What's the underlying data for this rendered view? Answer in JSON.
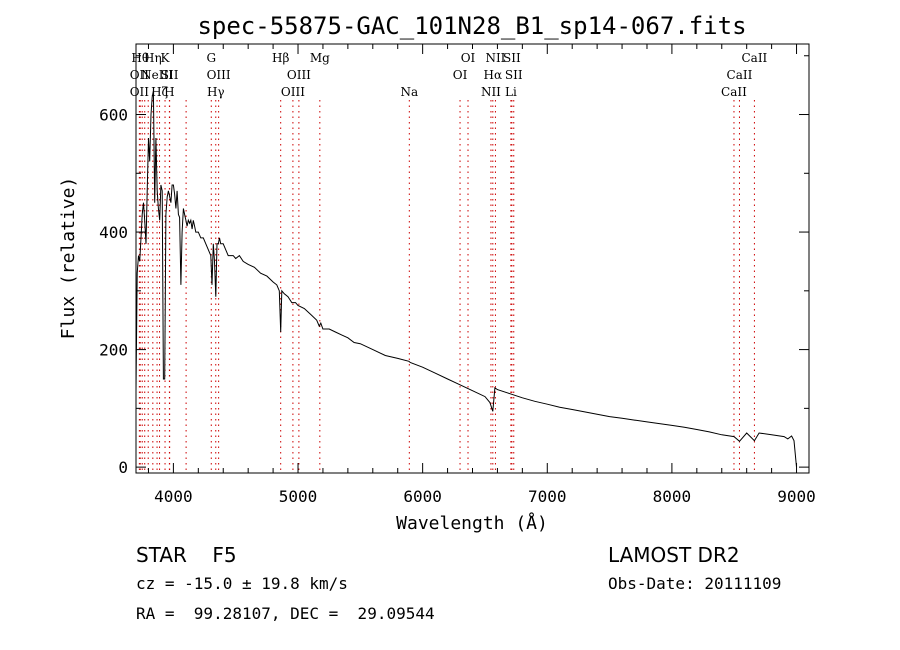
{
  "chart_data": {
    "type": "line",
    "title": "spec-55875-GAC_101N28_B1_sp14-067.fits",
    "xlabel": "Wavelength (Å)",
    "ylabel": "Flux (relative)",
    "xlim": [
      3700,
      9100
    ],
    "ylim": [
      -10,
      720
    ],
    "x_ticks": [
      4000,
      5000,
      6000,
      7000,
      8000,
      9000
    ],
    "y_ticks": [
      0,
      200,
      400,
      600
    ],
    "grid": false,
    "series": [
      {
        "x": [
          3700,
          3710,
          3720,
          3730,
          3740,
          3750,
          3760,
          3770,
          3780,
          3790,
          3800,
          3810,
          3820,
          3830,
          3840,
          3850,
          3860,
          3870,
          3880,
          3890,
          3900,
          3910,
          3920,
          3930,
          3940,
          3950,
          3960,
          3970,
          3980,
          3990,
          4000,
          4010,
          4020,
          4030,
          4040,
          4050,
          4060,
          4070,
          4080,
          4090,
          4100,
          4110,
          4120,
          4130,
          4140,
          4150,
          4160,
          4170,
          4180,
          4190,
          4200,
          4220,
          4240,
          4260,
          4280,
          4300,
          4310,
          4320,
          4330,
          4340,
          4350,
          4360,
          4370,
          4380,
          4400,
          4420,
          4440,
          4460,
          4480,
          4500,
          4530,
          4560,
          4600,
          4650,
          4700,
          4750,
          4800,
          4830,
          4850,
          4861,
          4870,
          4890,
          4920,
          4950,
          4980,
          5000,
          5050,
          5100,
          5150,
          5170,
          5183,
          5200,
          5250,
          5300,
          5350,
          5400,
          5450,
          5500,
          5600,
          5700,
          5800,
          5890,
          5900,
          6000,
          6100,
          6200,
          6300,
          6400,
          6500,
          6540,
          6563,
          6580,
          6600,
          6700,
          6800,
          6900,
          7000,
          7100,
          7200,
          7300,
          7400,
          7500,
          7600,
          7700,
          7800,
          7900,
          8000,
          8100,
          8200,
          8300,
          8400,
          8498,
          8542,
          8600,
          8662,
          8700,
          8800,
          8900,
          8930,
          8960,
          8980,
          9000
        ],
        "y": [
          130,
          330,
          360,
          350,
          390,
          430,
          450,
          420,
          380,
          470,
          560,
          520,
          600,
          630,
          640,
          450,
          560,
          470,
          440,
          420,
          480,
          470,
          150,
          150,
          430,
          460,
          470,
          460,
          450,
          480,
          480,
          465,
          440,
          470,
          430,
          425,
          310,
          400,
          440,
          430,
          420,
          410,
          420,
          415,
          420,
          405,
          420,
          410,
          400,
          400,
          400,
          390,
          390,
          380,
          370,
          360,
          310,
          380,
          350,
          290,
          380,
          380,
          390,
          380,
          380,
          370,
          360,
          360,
          360,
          355,
          360,
          350,
          345,
          340,
          330,
          325,
          315,
          310,
          300,
          230,
          300,
          295,
          290,
          280,
          280,
          275,
          270,
          260,
          250,
          240,
          245,
          235,
          235,
          230,
          225,
          220,
          212,
          210,
          200,
          190,
          185,
          180,
          178,
          170,
          160,
          150,
          140,
          130,
          120,
          110,
          95,
          135,
          132,
          125,
          118,
          112,
          107,
          102,
          98,
          94,
          90,
          86,
          83,
          80,
          77,
          74,
          71,
          68,
          64,
          60,
          55,
          52,
          44,
          58,
          45,
          58,
          55,
          52,
          48,
          53,
          45,
          0
        ],
        "color": "#000000"
      }
    ],
    "line_labels": [
      {
        "wavelength": 3734,
        "tier": 1,
        "label": "Hθ"
      },
      {
        "wavelength": 3727,
        "tier": 2,
        "label": "OII"
      },
      {
        "wavelength": 3727,
        "tier": 3,
        "label": "OII"
      },
      {
        "wavelength": 3835,
        "tier": 1,
        "label": "Hη"
      },
      {
        "wavelength": 3869,
        "tier": 2,
        "label": "NeIII"
      },
      {
        "wavelength": 3889,
        "tier": 3,
        "label": "Hζ"
      },
      {
        "wavelength": 3933,
        "tier": 1,
        "label": "K"
      },
      {
        "wavelength": 3970,
        "tier": 2,
        "label": "SII"
      },
      {
        "wavelength": 3968,
        "tier": 3,
        "label": "H"
      },
      {
        "wavelength": 4304,
        "tier": 1,
        "label": "G"
      },
      {
        "wavelength": 4363,
        "tier": 2,
        "label": "OIII"
      },
      {
        "wavelength": 4340,
        "tier": 3,
        "label": "Hγ"
      },
      {
        "wavelength": 4861,
        "tier": 1,
        "label": "Hβ"
      },
      {
        "wavelength": 5007,
        "tier": 2,
        "label": "OIII"
      },
      {
        "wavelength": 4959,
        "tier": 3,
        "label": "OIII"
      },
      {
        "wavelength": 5175,
        "tier": 1,
        "label": "Mg"
      },
      {
        "wavelength": 5893,
        "tier": 3,
        "label": "Na"
      },
      {
        "wavelength": 6364,
        "tier": 1,
        "label": "OI"
      },
      {
        "wavelength": 6300,
        "tier": 2,
        "label": "OI"
      },
      {
        "wavelength": 6584,
        "tier": 1,
        "label": "NII"
      },
      {
        "wavelength": 6563,
        "tier": 2,
        "label": "Hα"
      },
      {
        "wavelength": 6548,
        "tier": 3,
        "label": "NII"
      },
      {
        "wavelength": 6716,
        "tier": 1,
        "label": "SII"
      },
      {
        "wavelength": 6731,
        "tier": 2,
        "label": "SII"
      },
      {
        "wavelength": 6708,
        "tier": 3,
        "label": "Li"
      },
      {
        "wavelength": 8662,
        "tier": 1,
        "label": "CaII"
      },
      {
        "wavelength": 8542,
        "tier": 2,
        "label": "CaII"
      },
      {
        "wavelength": 8498,
        "tier": 3,
        "label": "CaII"
      }
    ],
    "dotted_lines": [
      3727,
      3734,
      3750,
      3770,
      3798,
      3835,
      3869,
      3889,
      3933,
      3968,
      3970,
      4102,
      4304,
      4340,
      4363,
      4861,
      4959,
      5007,
      5175,
      5893,
      6300,
      6364,
      6548,
      6563,
      6584,
      6708,
      6716,
      6731,
      8498,
      8542,
      8662
    ],
    "dotted_line_color": "#cc0000"
  },
  "footer": {
    "object": "STAR    F5",
    "survey": "LAMOST DR2",
    "cz": "cz = -15.0 ± 19.8 km/s",
    "obs_date": "Obs-Date: 20111109",
    "radec": "RA =  99.28107, DEC =  29.09544"
  }
}
